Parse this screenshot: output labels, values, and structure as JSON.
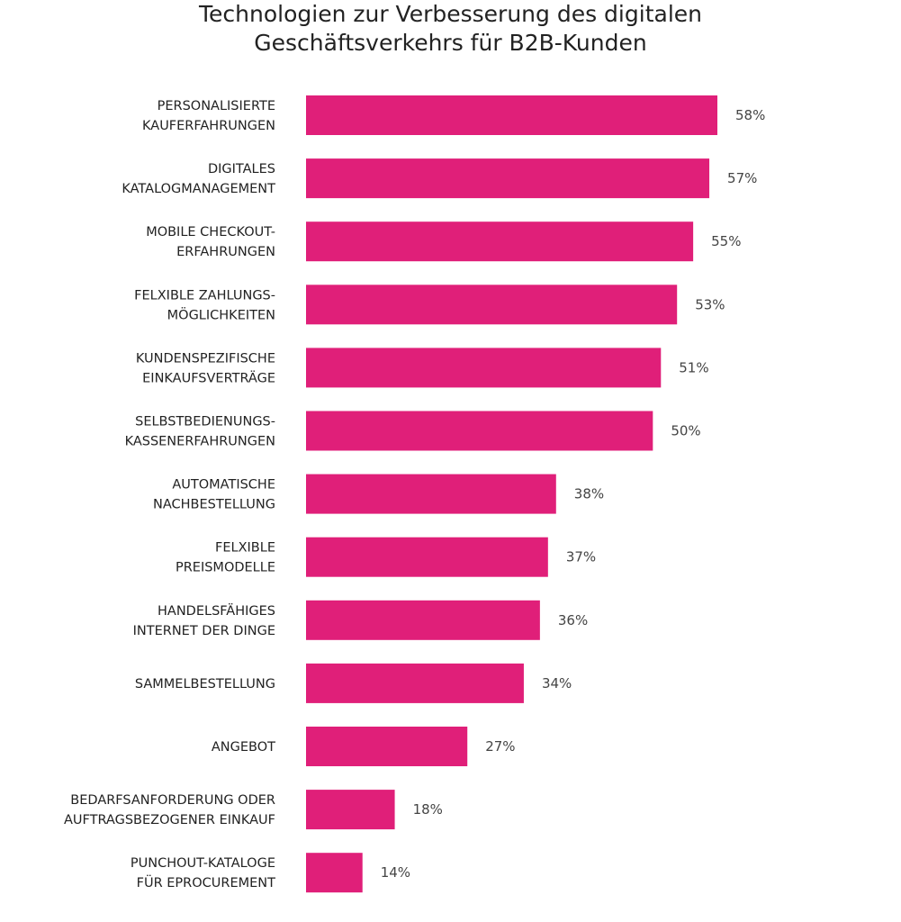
{
  "chart_data": {
    "type": "bar",
    "orientation": "horizontal",
    "title": "Technologien zur Verbesserung des digitalen Geschäftsverkehrs für B2B-Kunden",
    "title_lines": [
      "Technologien zur Verbesserung des digitalen",
      "Geschäftsverkehrs für B2B-Kunden"
    ],
    "categories": [
      [
        "PERSONALISIERTE",
        "KAUFERFAHRUNGEN"
      ],
      [
        "DIGITALES",
        "KATALOGMANAGEMENT"
      ],
      [
        "MOBILE CHECKOUT-",
        "ERFAHRUNGEN"
      ],
      [
        "FELXIBLE ZAHLUNGS-",
        "MÖGLICHKEITEN"
      ],
      [
        "KUNDENSPEZIFISCHE",
        "EINKAUFSVERTRÄGE"
      ],
      [
        "SELBSTBEDIENUNGS-",
        "KASSENERFAHRUNGEN"
      ],
      [
        "AUTOMATISCHE",
        "NACHBESTELLUNG"
      ],
      [
        "FELXIBLE",
        "PREISMODELLE"
      ],
      [
        "HANDELSFÄHIGES",
        "INTERNET DER DINGE"
      ],
      [
        "SAMMELBESTELLUNG"
      ],
      [
        "ANGEBOT"
      ],
      [
        "BEDARFSANFORDERUNG ODER",
        "AUFTRAGSBEZOGENER EINKAUF"
      ],
      [
        "PUNCHOUT-KATALOGE",
        "FÜR EPROCUREMENT"
      ]
    ],
    "values": [
      58,
      57,
      55,
      53,
      51,
      50,
      38,
      37,
      36,
      34,
      27,
      18,
      14
    ],
    "data_labels": [
      "58%",
      "57%",
      "55%",
      "53%",
      "51%",
      "50%",
      "38%",
      "37%",
      "36%",
      "34%",
      "27%",
      "18%",
      "14%"
    ],
    "bar_color": "#e01f79",
    "grid": false,
    "legend": "none"
  }
}
